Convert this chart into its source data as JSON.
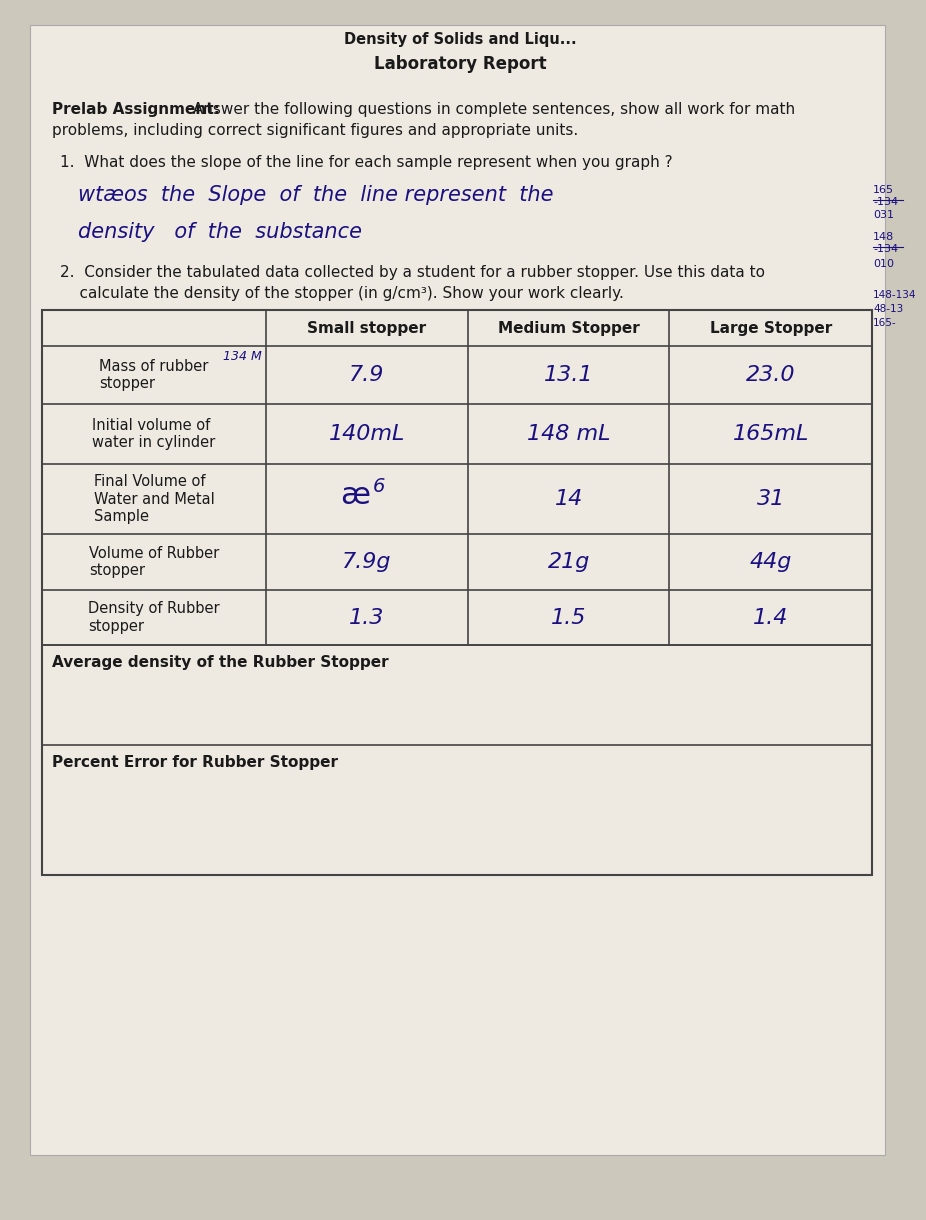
{
  "bg_color": "#cdc8bc",
  "paper_color": "#eeeae2",
  "title_partial": "Density of Solids and Liqu...",
  "title_main": "Laboratory Report",
  "prelab_bold": "Prelab Assignment:",
  "prelab_rest": " Answer the following questions in complete sentences, show all work for math\nproblems, including correct significant figures and appropriate units.",
  "q1_printed": "1.  What does the slope of the line for each sample represent when you graph ?",
  "q1_hw1": "wtæos  the  Slope  of  the  line represent  the",
  "q1_hw2": "density   of  the  substance",
  "q2_line1": "2.  Consider the tabulated data collected by a student for a rubber stopper. Use this data to",
  "q2_line2": "    calculate the density of the stopper (in g/cm³). Show your work clearly.",
  "table_col_headers": [
    "Small stopper",
    "Medium Stopper",
    "Large Stopper"
  ],
  "row_labels": [
    "Mass of rubber\nstopper",
    "Initial volume of\nwater in cylinder",
    "Final Volume of\nWater and Metal\nSample",
    "Volume of Rubber\nstopper",
    "Density of Rubber\nstopper"
  ],
  "col_small": [
    "7.9",
    "140mL",
    "6",
    "7.9g",
    "1.3"
  ],
  "col_medium": [
    "13.1",
    "148 mL",
    "14",
    "21g",
    "1.5"
  ],
  "col_large": [
    "23.0",
    "165mL",
    "31",
    "44g",
    "1.4"
  ],
  "avg_label": "Average density of the Rubber Stopper",
  "pct_label": "Percent Error for Rubber Stopper",
  "hw_color": "#1a1080",
  "print_color": "#1a1a1a",
  "line_color": "#444444",
  "note_134": "134 M",
  "side_right_top": [
    "165",
    "-134",
    "031"
  ],
  "side_right_mid": [
    "148",
    "-134",
    "010"
  ],
  "side_right_bot": [
    "148-134",
    "48-13",
    "165-"
  ]
}
